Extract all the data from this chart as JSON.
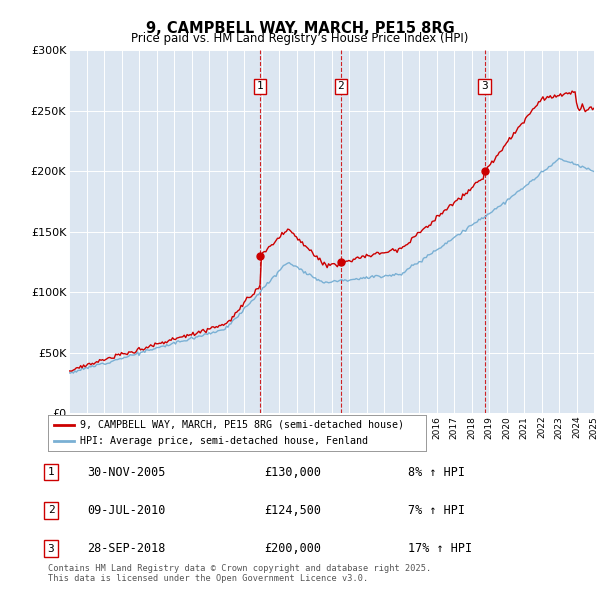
{
  "title": "9, CAMPBELL WAY, MARCH, PE15 8RG",
  "subtitle": "Price paid vs. HM Land Registry’s House Price Index (HPI)",
  "background_color": "#ffffff",
  "chart_bg_color": "#dce6f1",
  "grid_color": "#ffffff",
  "ylim": [
    0,
    300000
  ],
  "yticks": [
    0,
    50000,
    100000,
    150000,
    200000,
    250000,
    300000
  ],
  "ytick_labels": [
    "£0",
    "£50K",
    "£100K",
    "£150K",
    "£200K",
    "£250K",
    "£300K"
  ],
  "red_line_color": "#cc0000",
  "blue_line_color": "#7ab0d4",
  "red_line_label": "9, CAMPBELL WAY, MARCH, PE15 8RG (semi-detached house)",
  "blue_line_label": "HPI: Average price, semi-detached house, Fenland",
  "transactions": [
    {
      "num": 1,
      "date": "30-NOV-2005",
      "price": 130000,
      "pct": "8%",
      "year": 2005.92
    },
    {
      "num": 2,
      "date": "09-JUL-2010",
      "price": 124500,
      "pct": "7%",
      "year": 2010.53
    },
    {
      "num": 3,
      "date": "28-SEP-2018",
      "price": 200000,
      "pct": "17%",
      "year": 2018.75
    }
  ],
  "footer": "Contains HM Land Registry data © Crown copyright and database right 2025.\nThis data is licensed under the Open Government Licence v3.0.",
  "xmin": 1995,
  "xmax": 2025
}
